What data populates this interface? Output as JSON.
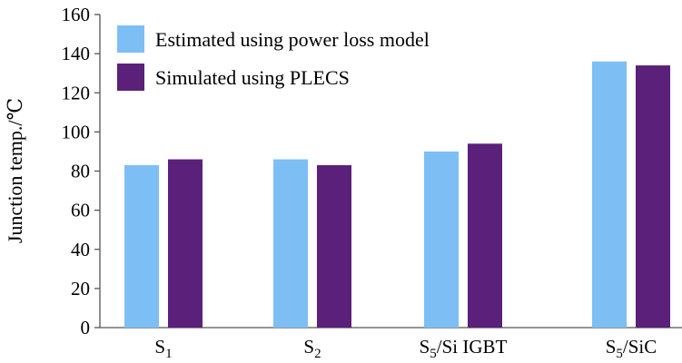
{
  "chart_data": {
    "type": "bar",
    "categories": [
      {
        "main": "S",
        "sub": "1",
        "rest": ""
      },
      {
        "main": "S",
        "sub": "2",
        "rest": ""
      },
      {
        "main": "S",
        "sub": "5",
        "rest": "/Si IGBT"
      },
      {
        "main": "S",
        "sub": "5",
        "rest": "/SiC"
      }
    ],
    "series": [
      {
        "name": "Estimated using power loss model",
        "color": "#7DBEF5",
        "values": [
          83,
          86,
          90,
          136
        ]
      },
      {
        "name": "Simulated using PLECS",
        "color": "#5B2079",
        "values": [
          86,
          83,
          94,
          134
        ]
      }
    ],
    "ylabel": "Junction temp./℃",
    "ylim": [
      0,
      160
    ],
    "yticks": [
      0,
      20,
      40,
      60,
      80,
      100,
      120,
      140,
      160
    ],
    "grid": false,
    "legend_position": "top-left"
  }
}
